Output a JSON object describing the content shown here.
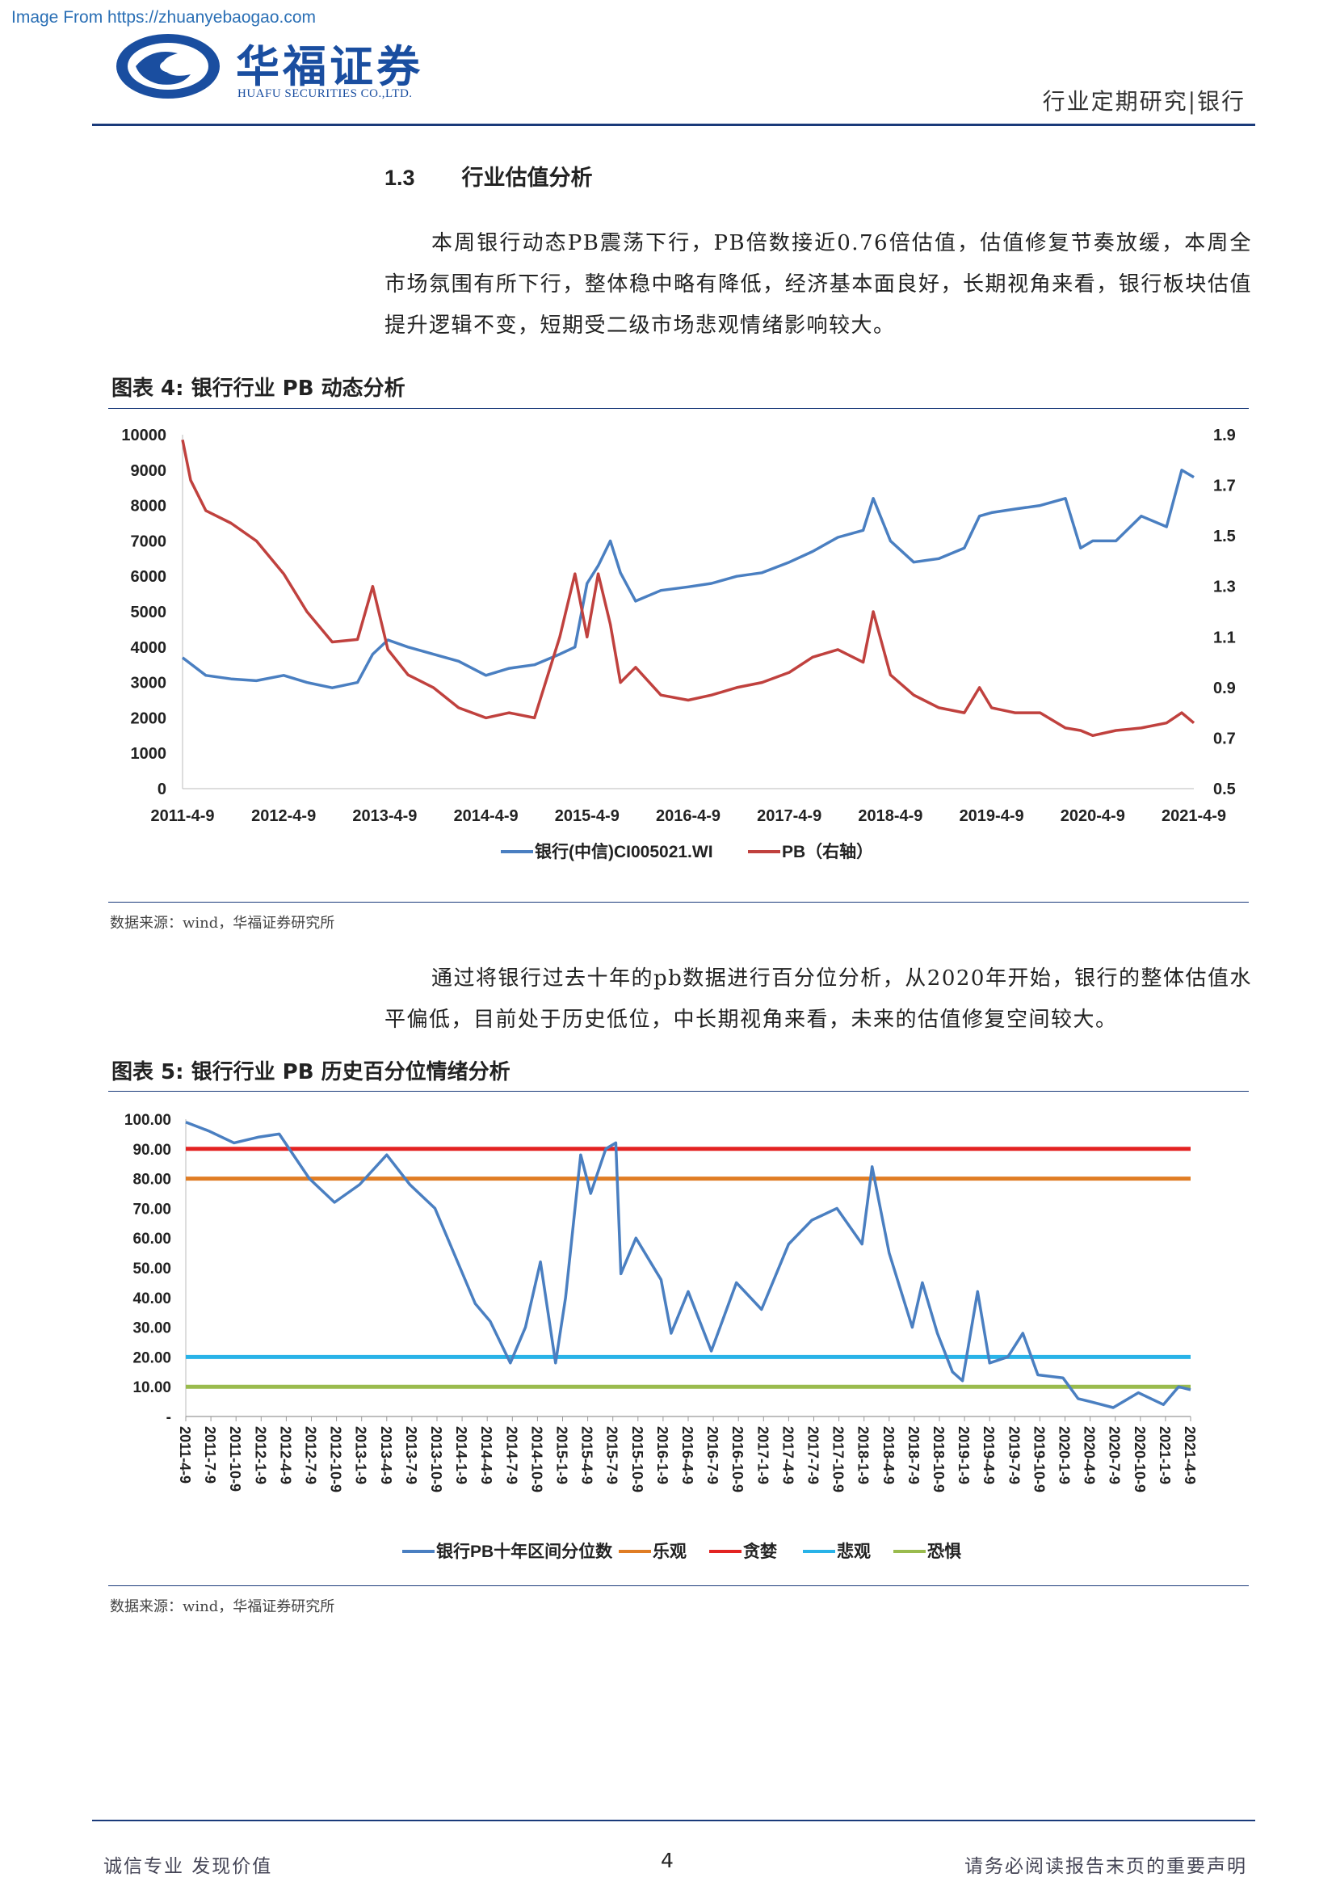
{
  "watermark": "Image From https://zhuanyebaogao.com",
  "brand": {
    "cn": "华福证券",
    "en": "HUAFU SECURITIES CO.,LTD."
  },
  "header": {
    "right": "行业定期研究|银行"
  },
  "section": {
    "number": "1.3",
    "title": "行业估值分析"
  },
  "paragraph1": "本周银行动态PB震荡下行，PB倍数接近0.76倍估值，估值修复节奏放缓，本周全市场氛围有所下行，整体稳中略有降低，经济基本面良好，长期视角来看，银行板块估值提升逻辑不变，短期受二级市场悲观情绪影响较大。",
  "figure4": {
    "caption": "图表 4:  银行行业 PB 动态分析",
    "source": "数据来源：wind，华福证券研究所"
  },
  "paragraph2": "通过将银行过去十年的pb数据进行百分位分析，从2020年开始，银行的整体估值水平偏低，目前处于历史低位，中长期视角来看，未来的估值修复空间较大。",
  "figure5": {
    "caption": "图表 5:  银行行业 PB 历史百分位情绪分析",
    "source": "数据来源：wind，华福证券研究所"
  },
  "footer": {
    "left": "诚信专业   发现价值",
    "page": "4",
    "right": "请务必阅读报告末页的重要声明"
  },
  "chart_data": [
    {
      "type": "line",
      "x_ticks": [
        "2011-4-9",
        "2012-4-9",
        "2013-4-9",
        "2014-4-9",
        "2015-4-9",
        "2016-4-9",
        "2017-4-9",
        "2018-4-9",
        "2019-4-9",
        "2020-4-9",
        "2021-4-9"
      ],
      "y_left": {
        "ticks": [
          "10000",
          "9000",
          "8000",
          "7000",
          "6000",
          "5000",
          "4000",
          "3000",
          "2000",
          "1000",
          "0"
        ],
        "lim": [
          0,
          10000
        ]
      },
      "y_right": {
        "ticks": [
          "1.9",
          "1.7",
          "1.5",
          "1.3",
          "1.1",
          "0.9",
          "0.7",
          "0.5"
        ],
        "lim": [
          0.5,
          1.9
        ]
      },
      "series": [
        {
          "name": "银行(中信)CI005021.WI",
          "axis": "left",
          "color": "#4a7fc1",
          "x": [
            2011.27,
            2011.5,
            2011.75,
            2012.0,
            2012.27,
            2012.5,
            2012.75,
            2013.0,
            2013.15,
            2013.3,
            2013.5,
            2013.75,
            2014.0,
            2014.27,
            2014.5,
            2014.75,
            2015.0,
            2015.15,
            2015.27,
            2015.38,
            2015.5,
            2015.6,
            2015.75,
            2016.0,
            2016.27,
            2016.5,
            2016.75,
            2017.0,
            2017.27,
            2017.5,
            2017.75,
            2018.0,
            2018.1,
            2018.27,
            2018.5,
            2018.75,
            2019.0,
            2019.15,
            2019.27,
            2019.5,
            2019.75,
            2020.0,
            2020.15,
            2020.27,
            2020.5,
            2020.75,
            2021.0,
            2021.15,
            2021.27
          ],
          "y": [
            3700,
            3200,
            3100,
            3050,
            3200,
            3000,
            2850,
            3000,
            3800,
            4200,
            4000,
            3800,
            3600,
            3200,
            3400,
            3500,
            3800,
            4000,
            5800,
            6300,
            7000,
            6100,
            5300,
            5600,
            5700,
            5800,
            6000,
            6100,
            6400,
            6700,
            7100,
            7300,
            8200,
            7000,
            6400,
            6500,
            6800,
            7700,
            7800,
            7900,
            8000,
            8200,
            6800,
            7000,
            7000,
            7700,
            7400,
            9000,
            8800
          ]
        },
        {
          "name": "PB（右轴）",
          "axis": "right",
          "color": "#c0413e",
          "x": [
            2011.27,
            2011.35,
            2011.5,
            2011.75,
            2012.0,
            2012.27,
            2012.5,
            2012.75,
            2013.0,
            2013.15,
            2013.3,
            2013.5,
            2013.75,
            2014.0,
            2014.27,
            2014.5,
            2014.75,
            2015.0,
            2015.15,
            2015.27,
            2015.38,
            2015.5,
            2015.6,
            2015.75,
            2016.0,
            2016.27,
            2016.5,
            2016.75,
            2017.0,
            2017.27,
            2017.5,
            2017.75,
            2018.0,
            2018.1,
            2018.27,
            2018.5,
            2018.75,
            2019.0,
            2019.15,
            2019.27,
            2019.5,
            2019.75,
            2020.0,
            2020.15,
            2020.27,
            2020.5,
            2020.75,
            2021.0,
            2021.15,
            2021.27
          ],
          "y": [
            1.88,
            1.72,
            1.6,
            1.55,
            1.48,
            1.35,
            1.2,
            1.08,
            1.09,
            1.3,
            1.05,
            0.95,
            0.9,
            0.82,
            0.78,
            0.8,
            0.78,
            1.1,
            1.35,
            1.1,
            1.35,
            1.15,
            0.92,
            0.98,
            0.87,
            0.85,
            0.87,
            0.9,
            0.92,
            0.96,
            1.02,
            1.05,
            1.0,
            1.2,
            0.95,
            0.87,
            0.82,
            0.8,
            0.9,
            0.82,
            0.8,
            0.8,
            0.74,
            0.73,
            0.71,
            0.73,
            0.74,
            0.76,
            0.8,
            0.76
          ]
        }
      ],
      "legend": "bottom-center"
    },
    {
      "type": "line",
      "x_ticks": [
        "2011-4-9",
        "2011-7-9",
        "2011-10-9",
        "2012-1-9",
        "2012-4-9",
        "2012-7-9",
        "2012-10-9",
        "2013-1-9",
        "2013-4-9",
        "2013-7-9",
        "2013-10-9",
        "2014-1-9",
        "2014-4-9",
        "2014-7-9",
        "2014-10-9",
        "2015-1-9",
        "2015-4-9",
        "2015-7-9",
        "2015-10-9",
        "2016-1-9",
        "2016-4-9",
        "2016-7-9",
        "2016-10-9",
        "2017-1-9",
        "2017-4-9",
        "2017-7-9",
        "2017-10-9",
        "2018-1-9",
        "2018-4-9",
        "2018-7-9",
        "2018-10-9",
        "2019-1-9",
        "2019-4-9",
        "2019-7-9",
        "2019-10-9",
        "2020-1-9",
        "2020-4-9",
        "2020-7-9",
        "2020-10-9",
        "2021-1-9",
        "2021-4-9"
      ],
      "y_ticks": [
        "100.00",
        "90.00",
        "80.00",
        "70.00",
        "60.00",
        "50.00",
        "40.00",
        "30.00",
        "20.00",
        "10.00",
        "-"
      ],
      "ylim": [
        0,
        100
      ],
      "series": [
        {
          "name": "银行PB十年区间分位数",
          "color": "#4a7fc1",
          "x": [
            2011.27,
            2011.5,
            2011.75,
            2012.0,
            2012.2,
            2012.5,
            2012.75,
            2013.0,
            2013.27,
            2013.5,
            2013.75,
            2014.0,
            2014.15,
            2014.3,
            2014.5,
            2014.65,
            2014.8,
            2014.95,
            2015.05,
            2015.2,
            2015.3,
            2015.45,
            2015.55,
            2015.6,
            2015.75,
            2016.0,
            2016.1,
            2016.27,
            2016.5,
            2016.75,
            2017.0,
            2017.27,
            2017.5,
            2017.75,
            2018.0,
            2018.1,
            2018.27,
            2018.5,
            2018.6,
            2018.75,
            2018.9,
            2019.0,
            2019.15,
            2019.27,
            2019.45,
            2019.6,
            2019.75,
            2020.0,
            2020.15,
            2020.27,
            2020.5,
            2020.75,
            2021.0,
            2021.15,
            2021.27
          ],
          "y": [
            99,
            96,
            92,
            94,
            95,
            80,
            72,
            78,
            88,
            78,
            70,
            50,
            38,
            32,
            18,
            30,
            52,
            18,
            40,
            88,
            75,
            90,
            92,
            48,
            60,
            46,
            28,
            42,
            22,
            45,
            36,
            58,
            66,
            70,
            58,
            84,
            55,
            30,
            45,
            28,
            15,
            12,
            42,
            18,
            20,
            28,
            14,
            13,
            6,
            5,
            3,
            8,
            4,
            10,
            9
          ]
        },
        {
          "name": "乐观",
          "color": "#e07d24",
          "const": 80
        },
        {
          "name": "贪婪",
          "color": "#e32322",
          "const": 90
        },
        {
          "name": "悲观",
          "color": "#29b3e8",
          "const": 20
        },
        {
          "name": "恐惧",
          "color": "#9abb4e",
          "const": 10
        }
      ],
      "legend": "bottom-center"
    }
  ]
}
